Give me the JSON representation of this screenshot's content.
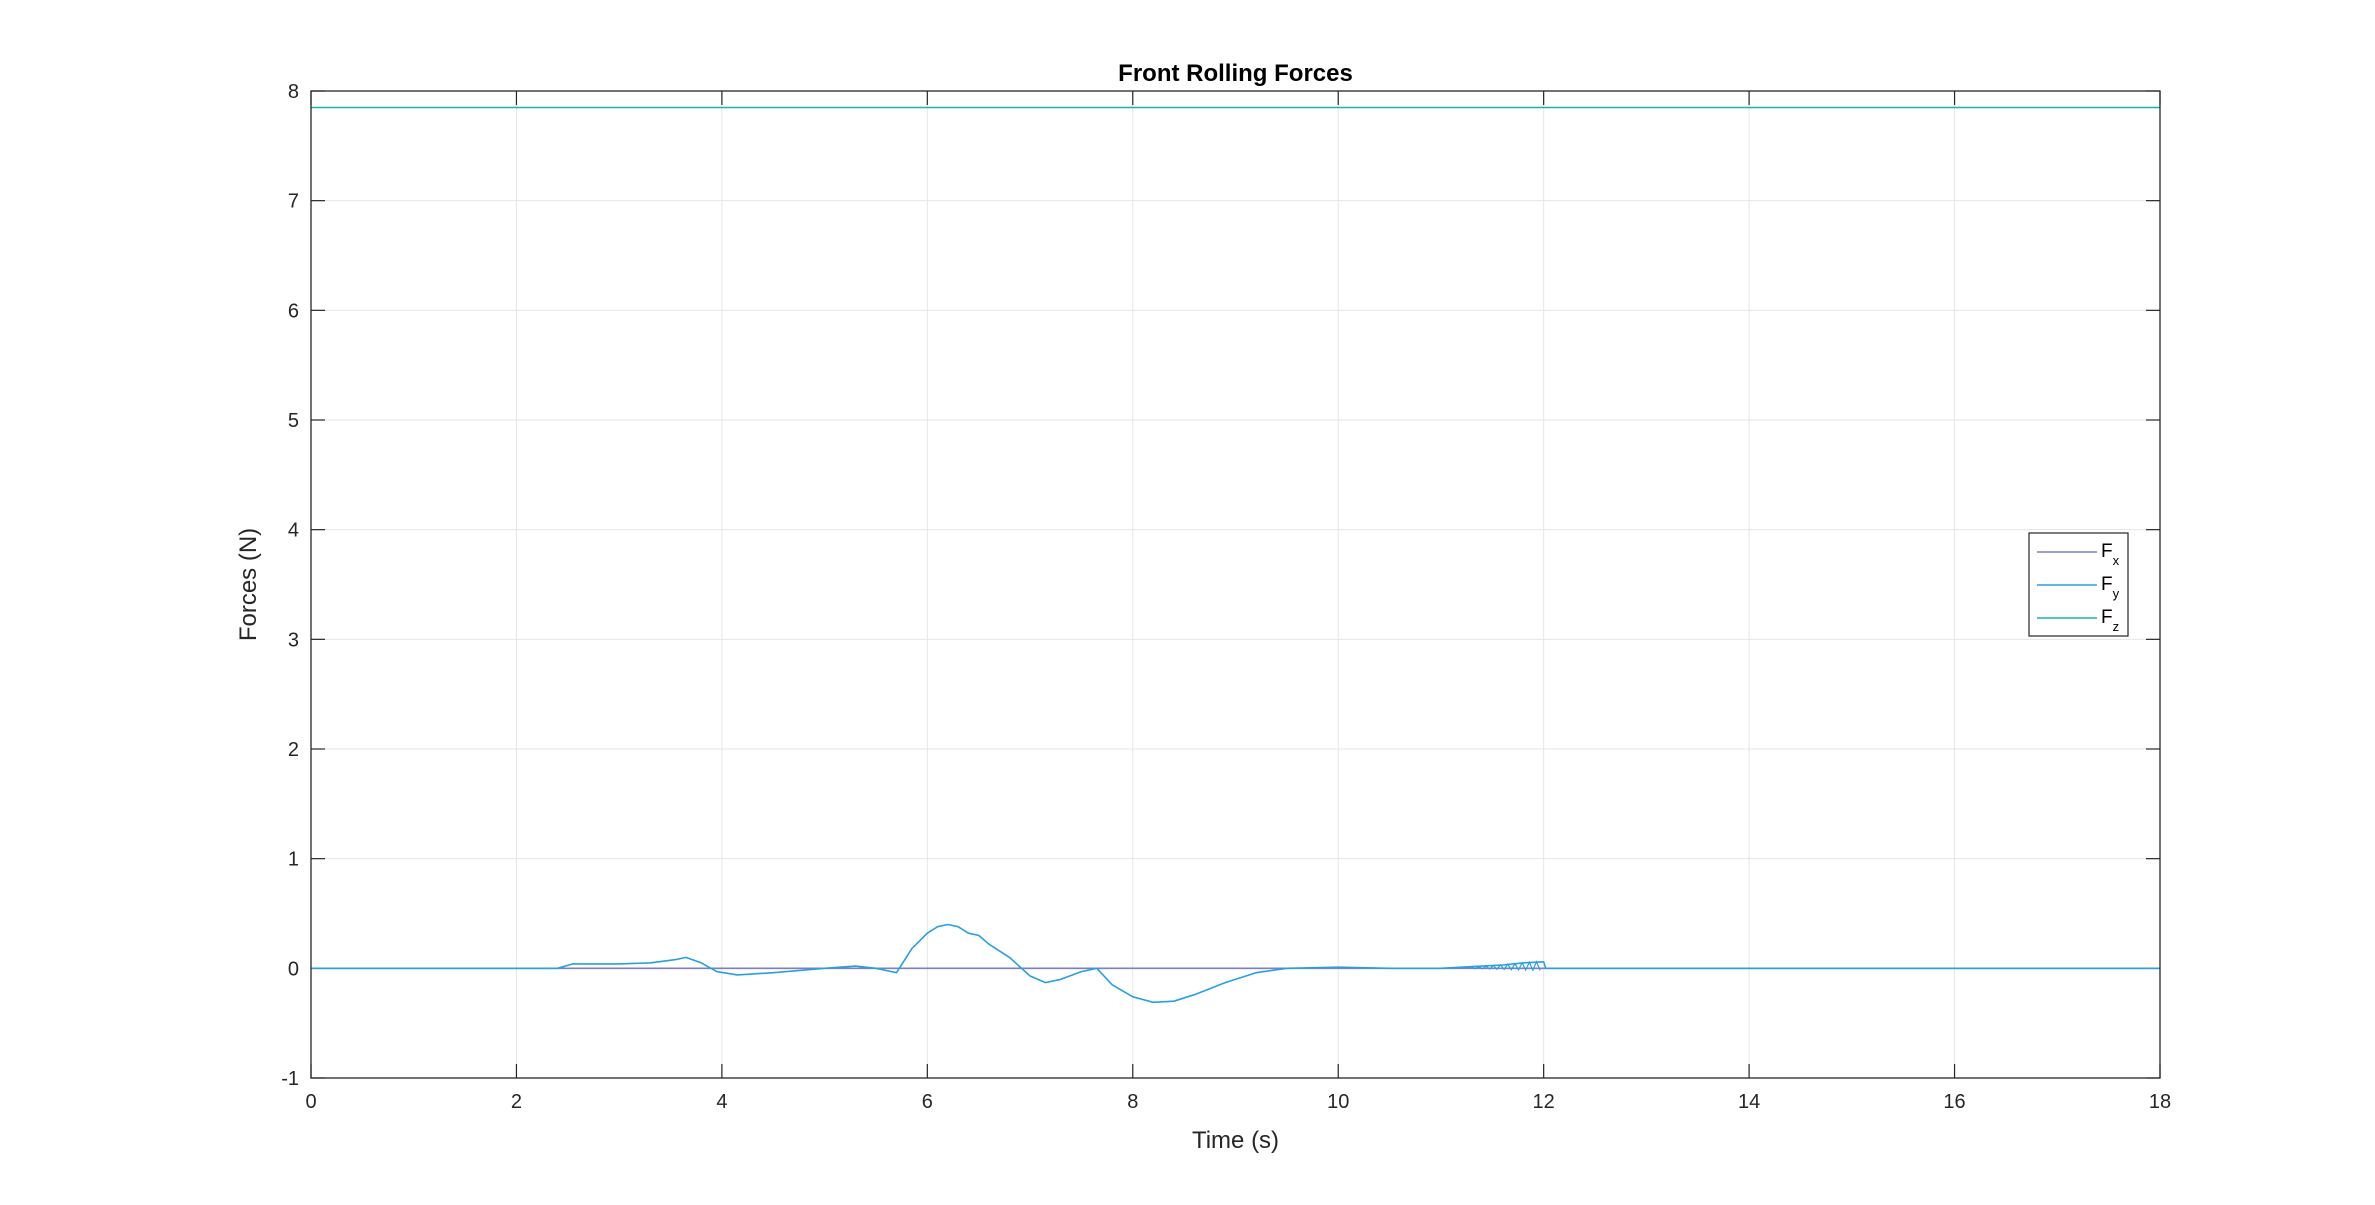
{
  "chart_data": {
    "type": "line",
    "title": "Front Rolling Forces",
    "xlabel": "Time (s)",
    "ylabel": "Forces (N)",
    "xlim": [
      0,
      18
    ],
    "ylim": [
      -1,
      8
    ],
    "xticks": [
      "0",
      "2",
      "4",
      "6",
      "8",
      "10",
      "12",
      "14",
      "16",
      "18"
    ],
    "yticks": [
      "-1",
      "0",
      "1",
      "2",
      "3",
      "4",
      "5",
      "6",
      "7",
      "8"
    ],
    "grid": true,
    "legend_position": "right",
    "series": [
      {
        "name": "F",
        "subscript": "x",
        "color": "#7e7ec8",
        "x": [
          0,
          18
        ],
        "y": [
          0,
          0
        ]
      },
      {
        "name": "F",
        "subscript": "y",
        "color": "#2a9fe0",
        "x": [
          0,
          2.4,
          2.55,
          3.0,
          3.3,
          3.55,
          3.65,
          3.8,
          3.95,
          4.15,
          4.5,
          5.0,
          5.3,
          5.5,
          5.7,
          5.85,
          6.0,
          6.1,
          6.2,
          6.3,
          6.4,
          6.5,
          6.6,
          6.8,
          7.0,
          7.15,
          7.3,
          7.5,
          7.65,
          7.8,
          8.0,
          8.2,
          8.4,
          8.6,
          8.9,
          9.2,
          9.5,
          10.0,
          10.5,
          11.0,
          11.2,
          11.4,
          11.6,
          11.8,
          12.0,
          12.02,
          12.05,
          18
        ],
        "y": [
          0,
          0,
          0.04,
          0.04,
          0.05,
          0.08,
          0.1,
          0.05,
          -0.03,
          -0.06,
          -0.04,
          0.0,
          0.02,
          0.0,
          -0.04,
          0.18,
          0.32,
          0.38,
          0.4,
          0.38,
          0.32,
          0.3,
          0.22,
          0.1,
          -0.07,
          -0.13,
          -0.1,
          -0.03,
          0.0,
          -0.15,
          -0.26,
          -0.31,
          -0.3,
          -0.24,
          -0.13,
          -0.04,
          0.0,
          0.01,
          0.0,
          0.0,
          0.01,
          0.02,
          0.03,
          0.05,
          0.06,
          0.0,
          0.0,
          0
        ]
      },
      {
        "name": "F",
        "subscript": "z",
        "color": "#1ab3a8",
        "x": [
          0,
          18
        ],
        "y": [
          7.85,
          7.85
        ]
      }
    ]
  }
}
